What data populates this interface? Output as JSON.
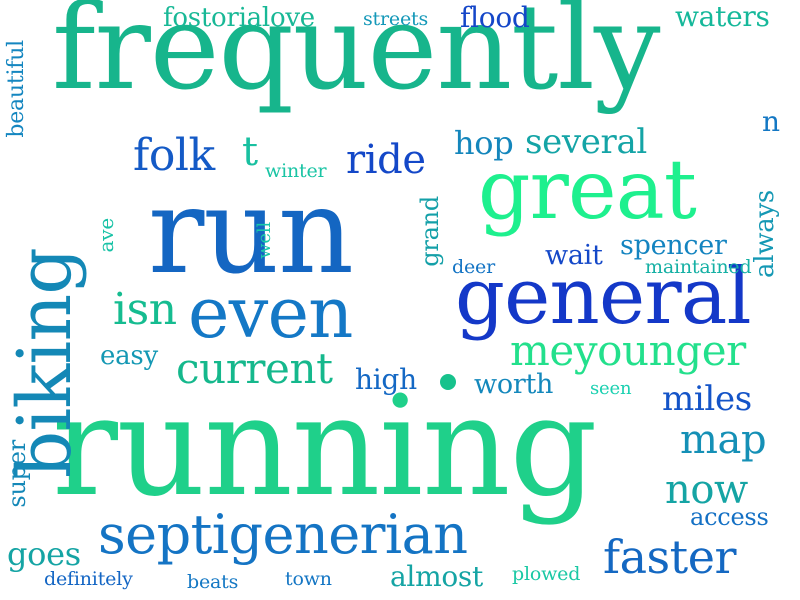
{
  "words": [
    {
      "text": "frequently",
      "color": "#17b58c"
    },
    {
      "text": "running",
      "color": "#1fd08a"
    },
    {
      "text": "run",
      "color": "#1466c2"
    },
    {
      "text": "great",
      "color": "#1ef08e"
    },
    {
      "text": "general",
      "color": "#1438c8"
    },
    {
      "text": "biking",
      "color": "#1488b6"
    },
    {
      "text": "even",
      "color": "#1478c6"
    },
    {
      "text": "septigenerian",
      "color": "#1474c4"
    },
    {
      "text": "meyounger",
      "color": "#23e08c"
    },
    {
      "text": "current",
      "color": "#15b88c"
    },
    {
      "text": "faster",
      "color": "#1468c2"
    },
    {
      "text": "map",
      "color": "#1590b6"
    },
    {
      "text": "now",
      "color": "#15a4a4"
    },
    {
      "text": "folk",
      "color": "#145ac6"
    },
    {
      "text": "ride",
      "color": "#1448c8"
    },
    {
      "text": "isn",
      "color": "#15bc90"
    },
    {
      "text": "several",
      "color": "#14a4a6"
    },
    {
      "text": "hop",
      "color": "#1486bc"
    },
    {
      "text": "spencer",
      "color": "#1484c0"
    },
    {
      "text": "wait",
      "color": "#1448c8"
    },
    {
      "text": "fostorialove",
      "color": "#18b896"
    },
    {
      "text": "flood",
      "color": "#1446c8"
    },
    {
      "text": "waters",
      "color": "#15b89a"
    },
    {
      "text": "streets",
      "color": "#1498b8"
    },
    {
      "text": "miles",
      "color": "#1454c8"
    },
    {
      "text": "access",
      "color": "#1470c4"
    },
    {
      "text": "worth",
      "color": "#1488bc"
    },
    {
      "text": "high",
      "color": "#1468c4"
    },
    {
      "text": "easy",
      "color": "#1498b4"
    },
    {
      "text": "goes",
      "color": "#15a4a4"
    },
    {
      "text": "almost",
      "color": "#15a4a4"
    },
    {
      "text": "maintained",
      "color": "#15b0a4"
    },
    {
      "text": "deer",
      "color": "#1474c4"
    },
    {
      "text": "winter",
      "color": "#1ac4a4"
    },
    {
      "text": "seen",
      "color": "#1ad0b0"
    },
    {
      "text": "plowed",
      "color": "#1ac8a4"
    },
    {
      "text": "definitely",
      "color": "#1466c4"
    },
    {
      "text": "beats",
      "color": "#1478c4"
    },
    {
      "text": "town",
      "color": "#1476c4"
    },
    {
      "text": "t",
      "color": "#19c0a0"
    },
    {
      "text": "n",
      "color": "#1478c4"
    },
    {
      "text": "beautiful",
      "color": "#1486c0"
    },
    {
      "text": "ave",
      "color": "#18c2a6"
    },
    {
      "text": "well",
      "color": "#18c8a8"
    },
    {
      "text": "grand",
      "color": "#14a0a8"
    },
    {
      "text": "always",
      "color": "#1498b4"
    },
    {
      "text": "super",
      "color": "#1488b8"
    }
  ],
  "dot_color": "#17c28c"
}
